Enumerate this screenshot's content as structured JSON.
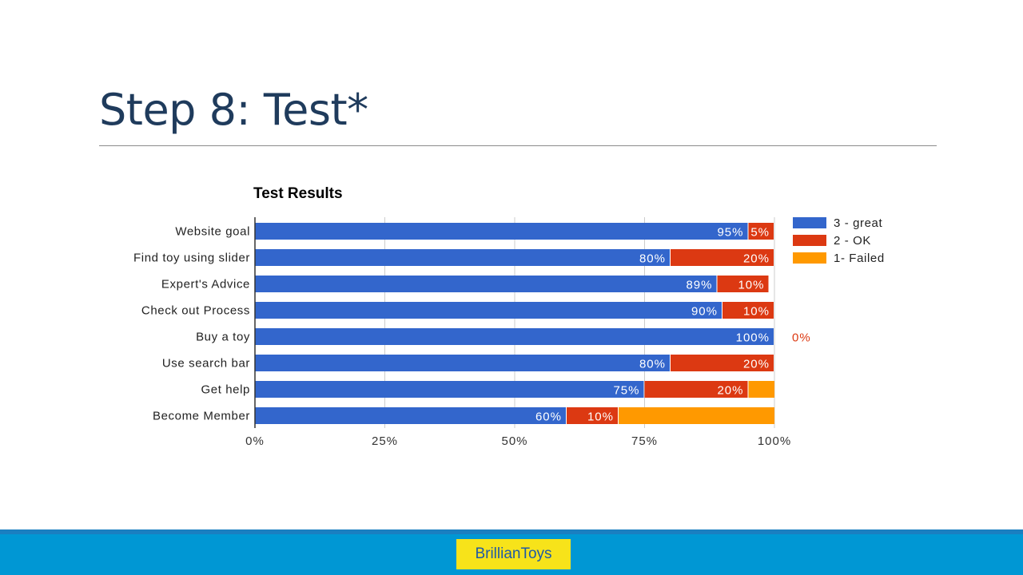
{
  "slide": {
    "title": "Step 8: Test*"
  },
  "footer": {
    "logo_text": "BrillianToys"
  },
  "colors": {
    "great": "#3366cc",
    "ok": "#dc3912",
    "failed": "#ff9900",
    "title": "#1f3b5c",
    "footer": "#0097d4",
    "logo_bg": "#f7e31a"
  },
  "chart_data": {
    "type": "bar",
    "orientation": "horizontal",
    "stacked": true,
    "title": "Test Results",
    "categories": [
      "Website goal",
      "Find toy using slider",
      "Expert's Advice",
      "Check out Process",
      "Buy a toy",
      "Use search bar",
      "Get help",
      "Become Member"
    ],
    "series": [
      {
        "name": "3 - great",
        "values": [
          95,
          80,
          89,
          90,
          100,
          80,
          75,
          60
        ],
        "labels": [
          "95%",
          "80%",
          "89%",
          "90%",
          "100%",
          "80%",
          "75%",
          "60%"
        ]
      },
      {
        "name": "2 - OK",
        "values": [
          5,
          20,
          10,
          10,
          0,
          20,
          20,
          10
        ],
        "labels": [
          "5%",
          "20%",
          "10%",
          "10%",
          "0%",
          "20%",
          "20%",
          "10%"
        ]
      },
      {
        "name": "1- Failed",
        "values": [
          0,
          0,
          0,
          0,
          0,
          0,
          5,
          30
        ],
        "labels": [
          "",
          "",
          "",
          "",
          "",
          "",
          "",
          ""
        ]
      }
    ],
    "xlim": [
      0,
      100
    ],
    "xticks": [
      "0%",
      "25%",
      "50%",
      "75%",
      "100%"
    ],
    "grid": true,
    "legend": "right"
  }
}
